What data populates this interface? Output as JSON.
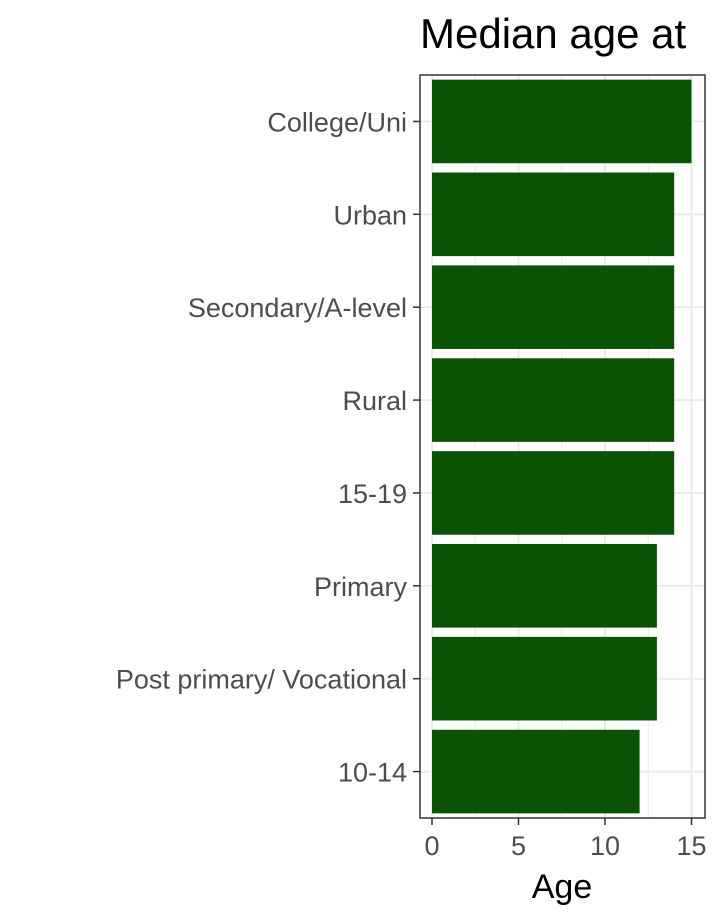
{
  "chart_data": {
    "type": "bar",
    "orientation": "horizontal",
    "title": "Median age at",
    "xlabel": "Age",
    "ylabel": "",
    "categories": [
      "College/Uni",
      "Urban",
      "Secondary/A-level",
      "Rural",
      "15-19",
      "Primary",
      "Post primary/ Vocational",
      "10-14"
    ],
    "values": [
      15,
      14,
      14,
      14,
      14,
      13,
      13,
      12
    ],
    "xlim": [
      0,
      15.5
    ],
    "xticks": [
      0,
      5,
      10,
      15
    ],
    "xtick_labels": [
      "0",
      "5",
      "10",
      "15"
    ],
    "grid": true,
    "bar_color": "#0b5304",
    "grid_color": "#ebebeb",
    "panel_border_color": "#333333"
  }
}
